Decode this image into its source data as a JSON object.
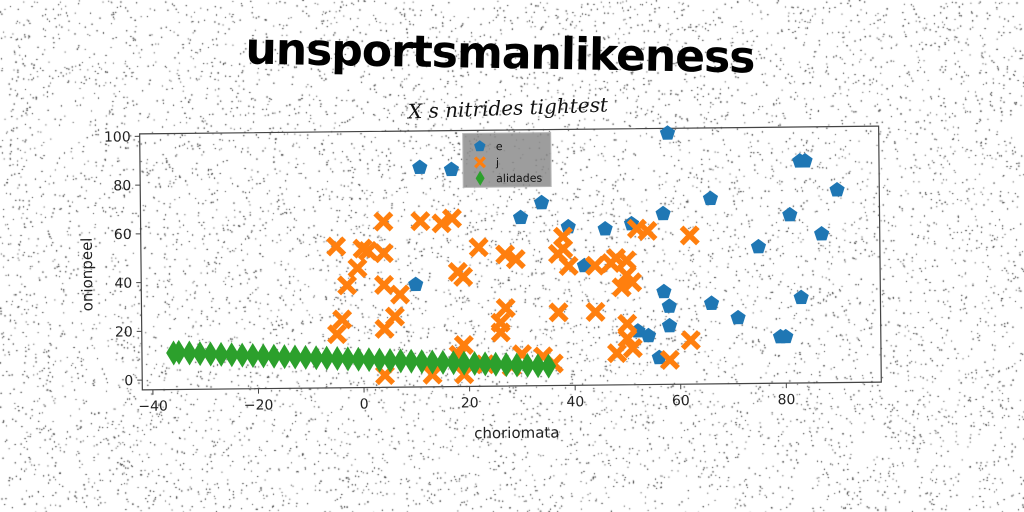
{
  "title": "unsportsmanlikeness",
  "chart_data": {
    "type": "scatter",
    "subtitle": "X s nitrides tightest",
    "xlabel": "choriomata",
    "ylabel": "onionpeel",
    "xlim": [
      -42,
      98
    ],
    "ylim": [
      -4,
      101
    ],
    "xticks": [
      "−40",
      "−20",
      "0",
      "20",
      "40",
      "60",
      "80"
    ],
    "xtick_values": [
      -40,
      -20,
      0,
      20,
      40,
      60,
      80
    ],
    "yticks": [
      "0",
      "20",
      "40",
      "60",
      "80",
      "100"
    ],
    "ytick_values": [
      0,
      20,
      40,
      60,
      80,
      100
    ],
    "legend_position": "top-center",
    "grid": false,
    "series": [
      {
        "name": "e",
        "marker": "pentagon",
        "color": "#1f77b4",
        "points": [
          [
            58,
            99
          ],
          [
            11,
            86
          ],
          [
            17,
            85
          ],
          [
            83,
            87
          ],
          [
            84,
            87
          ],
          [
            90,
            75
          ],
          [
            66,
            72
          ],
          [
            34,
            71
          ],
          [
            30,
            65
          ],
          [
            57,
            66
          ],
          [
            81,
            65
          ],
          [
            39,
            61
          ],
          [
            46,
            60
          ],
          [
            51,
            62
          ],
          [
            87,
            57
          ],
          [
            75,
            52
          ],
          [
            42,
            45
          ],
          [
            10,
            38
          ],
          [
            57,
            34
          ],
          [
            58,
            28
          ],
          [
            66,
            29
          ],
          [
            83,
            31
          ],
          [
            58,
            20
          ],
          [
            71,
            23
          ],
          [
            52,
            18
          ],
          [
            54,
            16
          ],
          [
            79,
            15
          ],
          [
            80,
            15
          ],
          [
            56,
            7
          ]
        ]
      },
      {
        "name": "j",
        "marker": "x-cross",
        "color": "#ff7f0e",
        "points": [
          [
            4,
            64
          ],
          [
            11,
            64
          ],
          [
            17,
            65
          ],
          [
            15,
            63
          ],
          [
            -5,
            54
          ],
          [
            0,
            53
          ],
          [
            1,
            52
          ],
          [
            4,
            51
          ],
          [
            -1,
            45
          ],
          [
            -3,
            38
          ],
          [
            18,
            43
          ],
          [
            19,
            41
          ],
          [
            22,
            53
          ],
          [
            27,
            50
          ],
          [
            29,
            48
          ],
          [
            38,
            57
          ],
          [
            38,
            52
          ],
          [
            37,
            50
          ],
          [
            39,
            45
          ],
          [
            44,
            45
          ],
          [
            47,
            46
          ],
          [
            48,
            48
          ],
          [
            50,
            47
          ],
          [
            50,
            41
          ],
          [
            51,
            38
          ],
          [
            49,
            36
          ],
          [
            52,
            60
          ],
          [
            54,
            59
          ],
          [
            62,
            57
          ],
          [
            4,
            38
          ],
          [
            7,
            34
          ],
          [
            6,
            25
          ],
          [
            4,
            20
          ],
          [
            -4,
            24
          ],
          [
            -5,
            18
          ],
          [
            27,
            28
          ],
          [
            26,
            22
          ],
          [
            26,
            18
          ],
          [
            37,
            26
          ],
          [
            44,
            26
          ],
          [
            50,
            21
          ],
          [
            50,
            15
          ],
          [
            48,
            9
          ],
          [
            51,
            11
          ],
          [
            58,
            6
          ],
          [
            62,
            14
          ],
          [
            19,
            13
          ],
          [
            18,
            9
          ],
          [
            30,
            9
          ],
          [
            34,
            8
          ],
          [
            36,
            5
          ],
          [
            4,
            1
          ],
          [
            13,
            1
          ],
          [
            19,
            1
          ],
          [
            28,
            4
          ],
          [
            23,
            5
          ]
        ]
      },
      {
        "name": "alidades",
        "marker": "diamond",
        "color": "#2ca02c",
        "points": [
          [
            -36,
            11
          ],
          [
            -35,
            11.2
          ],
          [
            -33,
            10.9
          ],
          [
            -31,
            10.6
          ],
          [
            -29,
            10.4
          ],
          [
            -27,
            10.2
          ],
          [
            -25,
            10
          ],
          [
            -23,
            9.8
          ],
          [
            -21,
            9.6
          ],
          [
            -19,
            9.4
          ],
          [
            -17,
            9.2
          ],
          [
            -15,
            9
          ],
          [
            -13,
            8.8
          ],
          [
            -11,
            8.6
          ],
          [
            -9,
            8.4
          ],
          [
            -7,
            8.2
          ],
          [
            -5,
            8
          ],
          [
            -3,
            7.8
          ],
          [
            -1,
            7.6
          ],
          [
            1,
            7.4
          ],
          [
            3,
            7.2
          ],
          [
            5,
            7
          ],
          [
            7,
            6.8
          ],
          [
            9,
            6.6
          ],
          [
            11,
            6.4
          ],
          [
            13,
            6.2
          ],
          [
            15,
            6
          ],
          [
            17,
            5.8
          ],
          [
            19,
            5.6
          ],
          [
            21,
            5.4
          ],
          [
            23,
            5.2
          ],
          [
            25,
            5
          ],
          [
            27,
            4.8
          ],
          [
            29,
            4.6
          ],
          [
            31,
            4.4
          ],
          [
            33,
            4.2
          ],
          [
            35,
            4
          ]
        ]
      }
    ]
  }
}
